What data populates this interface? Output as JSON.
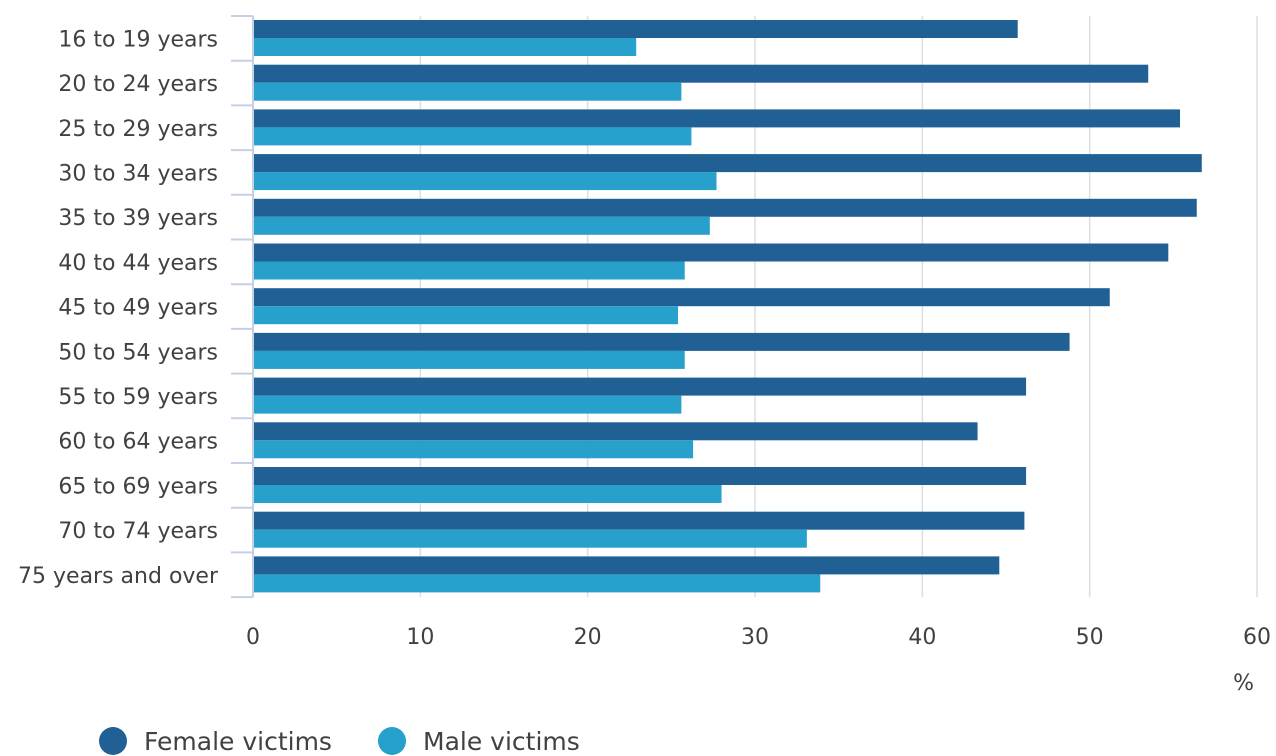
{
  "colors": {
    "female": "#206095",
    "male": "#27a0cc",
    "grid": "#dedede",
    "axis": "#c6d0e4",
    "text": "#414042"
  },
  "chart_data": {
    "type": "bar",
    "orientation": "horizontal",
    "title": "",
    "xlabel": "%",
    "ylabel": "",
    "xlim": [
      0,
      60
    ],
    "x_ticks": [
      "0",
      "10",
      "20",
      "30",
      "40",
      "50",
      "60"
    ],
    "grid": true,
    "legend_position": "bottom-left",
    "categories": [
      "16 to 19 years",
      "20 to 24 years",
      "25 to 29 years",
      "30 to 34 years",
      "35 to 39 years",
      "40 to 44 years",
      "45 to 49 years",
      "50 to 54 years",
      "55 to 59 years",
      "60 to 64 years",
      "65 to 69 years",
      "70 to 74 years",
      "75 years and over"
    ],
    "series": [
      {
        "name": "Female victims",
        "values": [
          45.7,
          53.5,
          55.4,
          56.7,
          56.4,
          54.7,
          51.2,
          48.8,
          46.2,
          43.3,
          46.2,
          46.1,
          44.6
        ]
      },
      {
        "name": "Male victims",
        "values": [
          22.9,
          25.6,
          26.2,
          27.7,
          27.3,
          25.8,
          25.4,
          25.8,
          25.6,
          26.3,
          28.0,
          33.1,
          33.9
        ]
      }
    ]
  }
}
